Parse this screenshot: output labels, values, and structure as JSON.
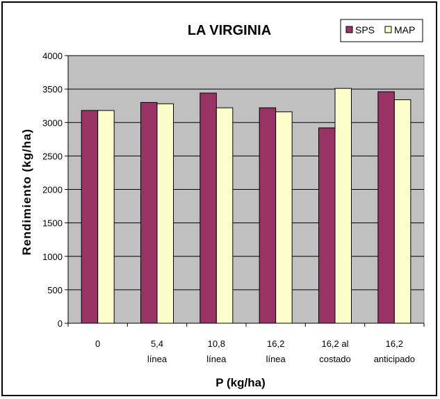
{
  "chart_data": {
    "type": "bar",
    "title": "LA VIRGINIA",
    "xlabel": "P (kg/ha)",
    "ylabel": "Rendimiento (kg/ha)",
    "ylim": [
      0,
      4000
    ],
    "yticks": [
      "0",
      "500",
      "1000",
      "1500",
      "2000",
      "2500",
      "3000",
      "3500",
      "4000"
    ],
    "categories": [
      [
        "0"
      ],
      [
        "5,4",
        "línea"
      ],
      [
        "10,8",
        "línea"
      ],
      [
        "16,2",
        "línea"
      ],
      [
        "16,2 al",
        "costado"
      ],
      [
        "16,2",
        "anticipado"
      ]
    ],
    "series": [
      {
        "name": "SPS",
        "color": "#993366",
        "values": [
          3180,
          3300,
          3440,
          3220,
          2920,
          3460
        ]
      },
      {
        "name": "MAP",
        "color": "#FFFFCC",
        "values": [
          3180,
          3280,
          3220,
          3160,
          3510,
          3340
        ]
      }
    ],
    "grid": true,
    "plot_background": "#C0C0C0",
    "legend_position": "top-right"
  }
}
